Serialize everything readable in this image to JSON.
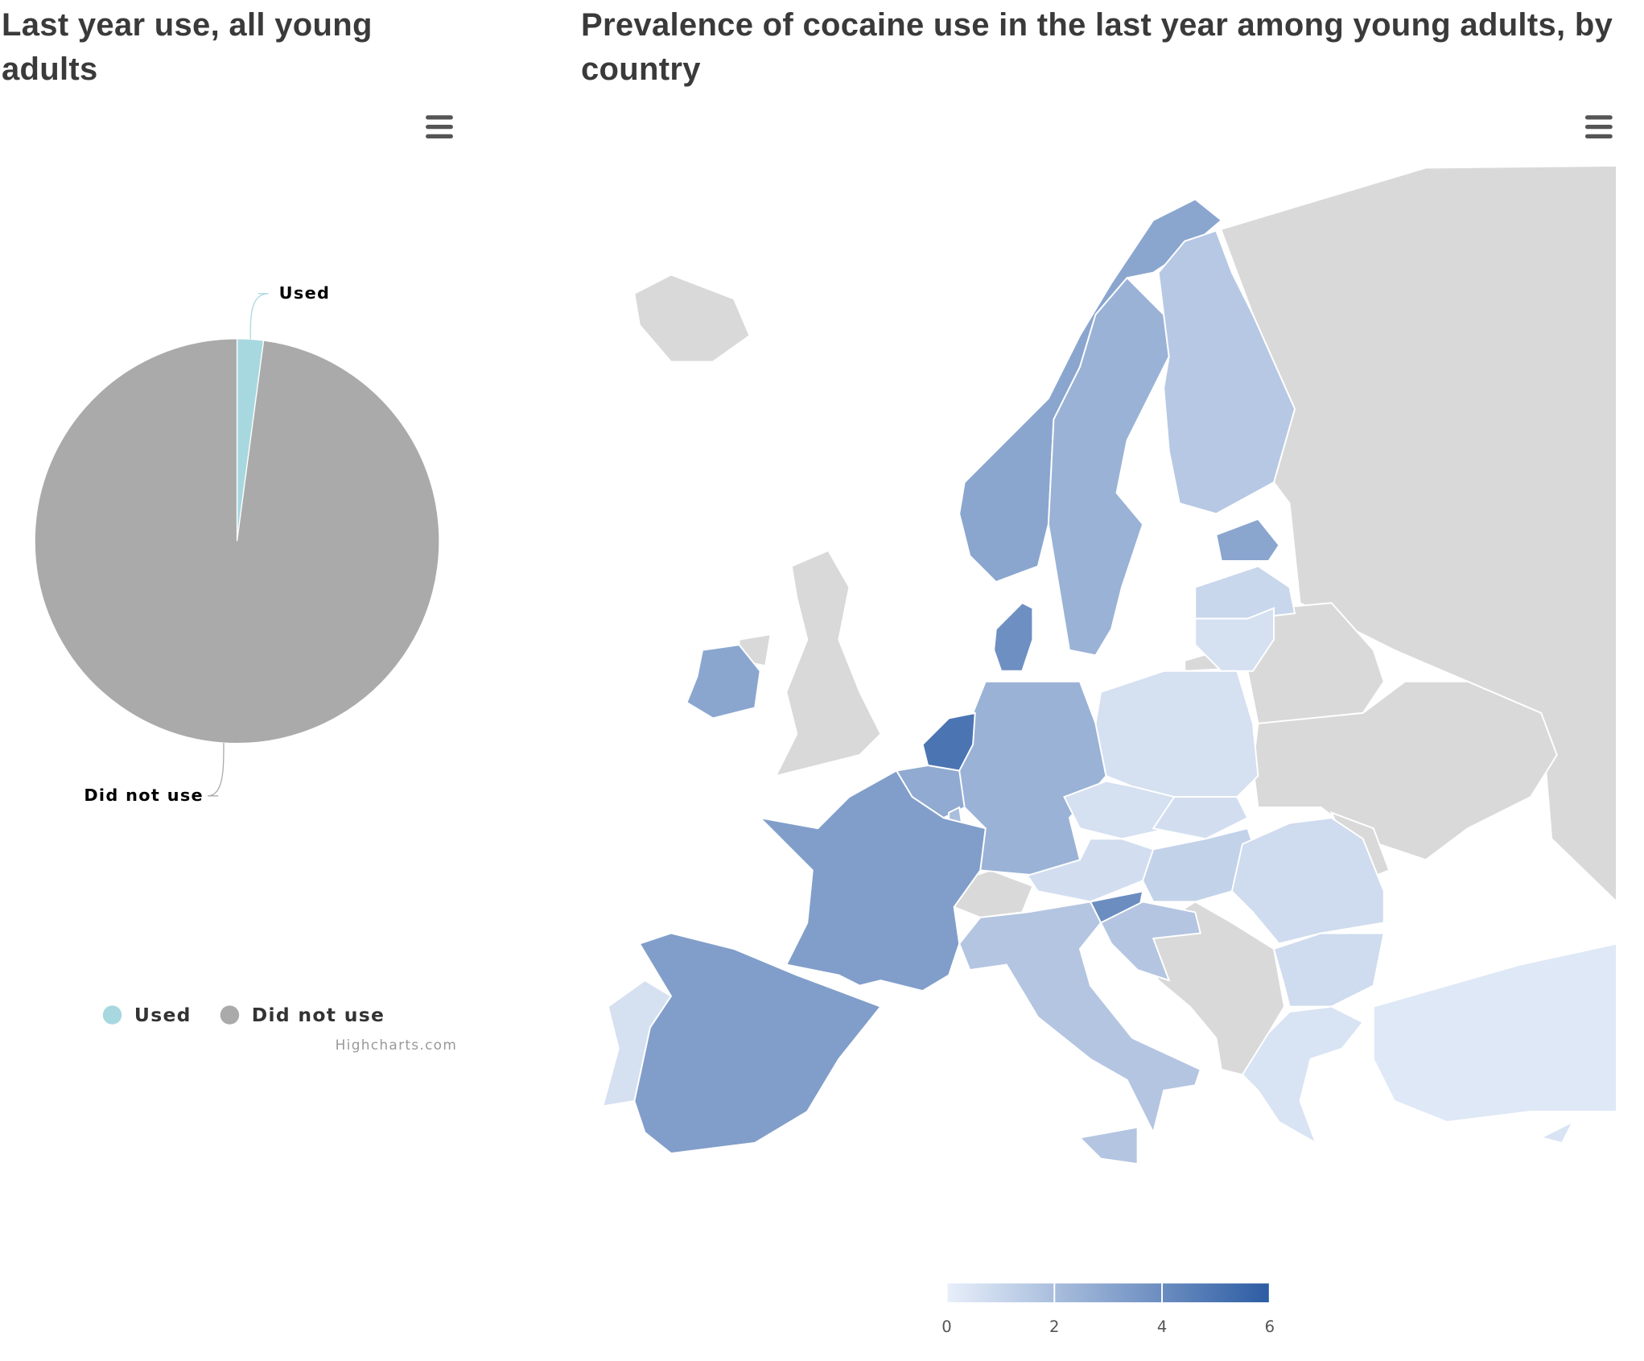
{
  "chart_data": [
    {
      "type": "pie",
      "title": "Last year use, all young adults",
      "categories": [
        "Used",
        "Did not use"
      ],
      "values": [
        2.1,
        97.9
      ],
      "colors": [
        "#a8d8df",
        "#aaaaaa"
      ],
      "legend": "bottom",
      "credit": "Highcharts.com"
    },
    {
      "type": "map",
      "title": "Prevalence of cocaine use in the last year among young adults, by country",
      "values": [
        3.0,
        2.5,
        1.6,
        3.0,
        1.0,
        0.6,
        3.9,
        2.5,
        5.0,
        2.8,
        2.0,
        3.3,
        3.3,
        0.6,
        0.6,
        0.6,
        0.7,
        0.7,
        1.2,
        4.0,
        1.7,
        1.7,
        1.7,
        0.8,
        0.8,
        0.5,
        0.3,
        0.5,
        3.0
      ],
      "colorlim": [
        0,
        6
      ],
      "colorticks": [
        0,
        2,
        4,
        6
      ],
      "min_color": "#e8effa",
      "max_color": "#2c5ca3",
      "missing_color": "#d9d9d9"
    }
  ]
}
